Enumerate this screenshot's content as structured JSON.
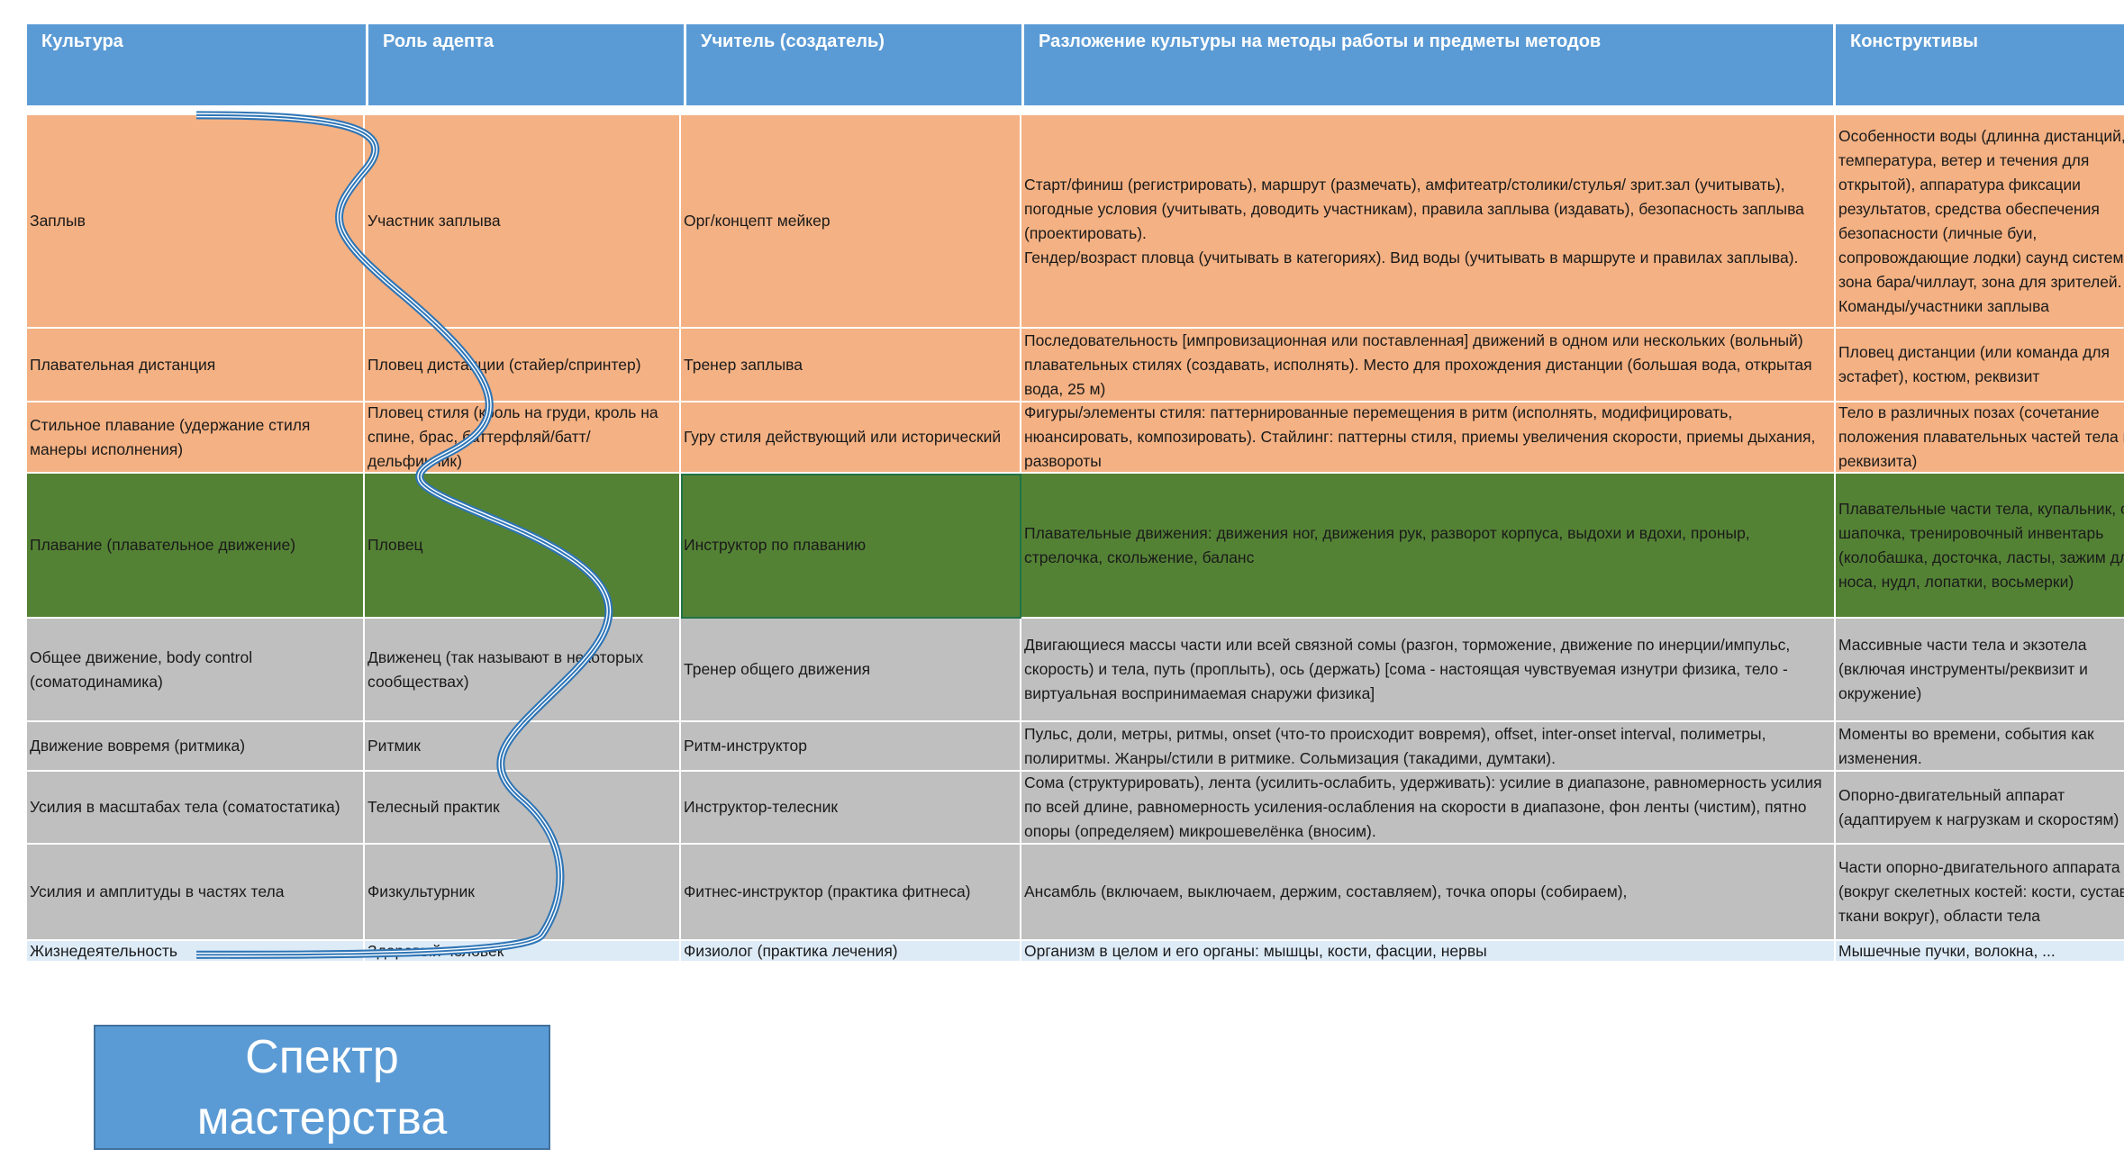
{
  "headers": [
    "Культура",
    "Роль адепта",
    "Учитель (создатель)",
    "Разложение культуры на методы работы и предметы методов",
    "Конструктивы"
  ],
  "rows": [
    {
      "color": "orange",
      "cells": [
        "Заплыв",
        "Участник заплыва",
        "Орг/концепт мейкер",
        "Старт/финиш (регистрировать), маршрут (размечать), амфитеатр/столики/стулья/ зрит.зал (учитывать), погодные условия (учитывать, доводить участникам), правила заплыва (издавать), безопасность заплыва (проектировать).\nГендер/возраст пловца (учитывать в категориях). Вид воды (учитывать в маршруте и правилах заплыва).",
        "Особенности воды (длинна дистанций, температура, ветер и течения для открытой), аппаратура фиксации результатов, средства обеспечения безопасности (личные буи, сопровождающие лодки) саунд система, зона бара/чиллаут, зона для зрителей.\nКоманды/участники заплыва"
      ]
    },
    {
      "color": "orange",
      "cells": [
        "Плавательная дистанция",
        "Пловец дистанции (стайер/спринтер)",
        "Тренер заплыва",
        "Последовательность [импровизационная или поставленная] движений в одном или нескольких (вольный) плавательных стилях (создавать, исполнять). Место для прохождения дистанции (большая вода, открытая вода, 25 м)",
        "Пловец дистанции (или команда для эстафет), костюм, реквизит"
      ]
    },
    {
      "color": "orange",
      "cells": [
        "Стильное плавание (удержание стиля манеры исполнения)",
        "Пловец стиля (кроль на груди, кроль на спине, брас, баттерфляй/батт/дельфинчик)",
        "Гуру стиля действующий или исторический",
        "Фигуры/элементы стиля: паттернированные перемещения в ритм (исполнять, модифицировать, нюансировать, композировать). Стайлинг: паттерны стиля, приемы увеличения скорости, приемы дыхания, развороты",
        "Тело в различных позах (сочетание положения плавательных частей тела и реквизита)"
      ]
    },
    {
      "color": "green",
      "cells": [
        "Плавание (плавательное движение)",
        "Пловец",
        "Инструктор по плаванию",
        "Плавательные движения: движения ног, движения рук, разворот корпуса, выдохи и вдохи, проныр, стрелочка, скольжение, баланс",
        "Плавательные части тела, купальник, очки, шапочка, тренировочный инвентарь (колобашка, досточка, ласты, зажим для носа, нудл, лопатки, восьмерки)"
      ]
    },
    {
      "color": "gray",
      "cells": [
        "Общее движение, body control (соматодинамика)",
        "Движенец (так называют в некоторых сообществах)",
        "Тренер общего движения",
        "Двигающиеся массы части или всей связной сомы (разгон, торможение, движение по инерции/импульс, скорость) и тела, путь (проплыть), ось (держать) [сома - настоящая чувствуемая изнутри физика, тело - виртуальная воспринимаемая снаружи физика]",
        "Массивные части тела и экзотела (включая инструменты/реквизит и окружение)"
      ]
    },
    {
      "color": "gray",
      "cells": [
        "Движение вовремя (ритмика)",
        "Ритмик",
        "Ритм-инструктор",
        "Пульс, доли, метры, ритмы, onset (что-то происходит вовремя), offset, inter-onset interval, полиметры, полиритмы. Жанры/стили в ритмике. Сольмизация (такадими, думтаки).",
        "Моменты во времени, события как изменения."
      ]
    },
    {
      "color": "gray",
      "cells": [
        "Усилия в масштабах тела (соматостатика)",
        "Телесный практик",
        "Инструктор-телесник",
        "Сома (структурировать), лента (усилить-ослабить, удерживать): усилие в диапазоне, равномерность усилия по всей длине, равномерность усиления-ослабления на скорости в диапазоне, фон ленты (чистим), пятно опоры (определяем) микрошевелёнка (вносим).",
        "Опорно-двигательный аппарат (адаптируем к нагрузкам и скоростям)"
      ]
    },
    {
      "color": "gray",
      "cells": [
        "Усилия и амплитуды в частях тела",
        "Физкультурник",
        "Фитнес-инструктор (практика фитнеса)",
        "Ансамбль (включаем, выключаем, держим, составляем), точка опоры (собираем),",
        "Части опорно-двигательного аппарата (вокруг скелетных костей: кости, суставы, ткани вокруг), области тела"
      ]
    },
    {
      "color": "blue",
      "cells": [
        "Жизнедеятельность",
        "Здоровый человек",
        "Физиолог (практика лечения)",
        "Организм в целом и его органы: мышцы, кости, фасции, нервы",
        "Мышечные пучки, волокна, ..."
      ]
    }
  ],
  "selected_cell": {
    "row": 3,
    "col": 2
  },
  "label_box": "Спектр\nмастерства",
  "colors": {
    "header": "#5B9BD5",
    "orange": "#F4B183",
    "green": "#548235",
    "gray": "#BFBFBF",
    "blue": "#DDEBF7",
    "wave": "#2E75B6"
  }
}
